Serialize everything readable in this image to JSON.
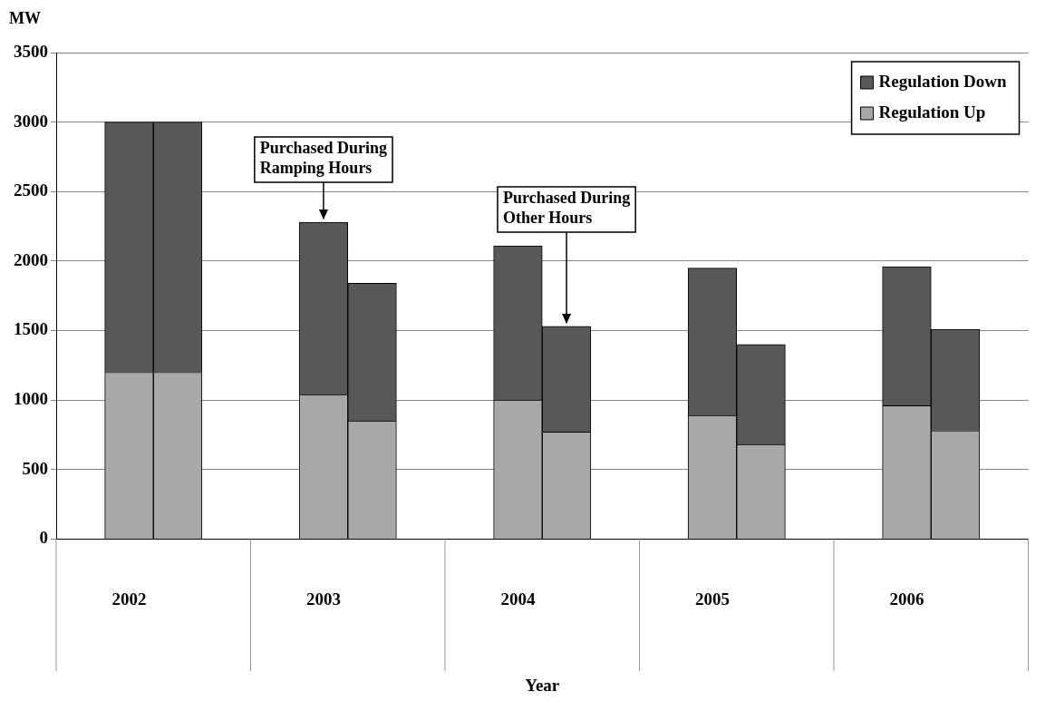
{
  "chart_data": {
    "type": "bar",
    "stacked": true,
    "xlabel": "Year",
    "ylabel": "MW",
    "categories": [
      null,
      "2002",
      null,
      null,
      null,
      "2003",
      null,
      null,
      null,
      "2004",
      null,
      null,
      null,
      "2005",
      null,
      null,
      null,
      "2006",
      null,
      null
    ],
    "series": [
      {
        "name": "Regulation Up",
        "color": "#a8a8a8",
        "values": [
          null,
          1200,
          1200,
          null,
          null,
          1040,
          850,
          null,
          null,
          1000,
          770,
          null,
          null,
          890,
          680,
          null,
          null,
          960,
          780,
          null
        ]
      },
      {
        "name": "Regulation Down",
        "color": "#585858",
        "values": [
          null,
          1800,
          1800,
          null,
          null,
          1240,
          990,
          null,
          null,
          1110,
          760,
          null,
          null,
          1060,
          720,
          null,
          null,
          1000,
          730,
          null
        ]
      }
    ],
    "ylim": [
      0,
      3500
    ],
    "yticks": [
      0,
      500,
      1000,
      1500,
      2000,
      2500,
      3000,
      3500
    ],
    "grid": "y",
    "legend": "top right",
    "annotations": [
      {
        "text": "Purchased During Ramping Hours",
        "x": "2003",
        "y": 2280
      },
      {
        "text": "Purchased During Other Hours",
        "y": 1530
      }
    ]
  }
}
